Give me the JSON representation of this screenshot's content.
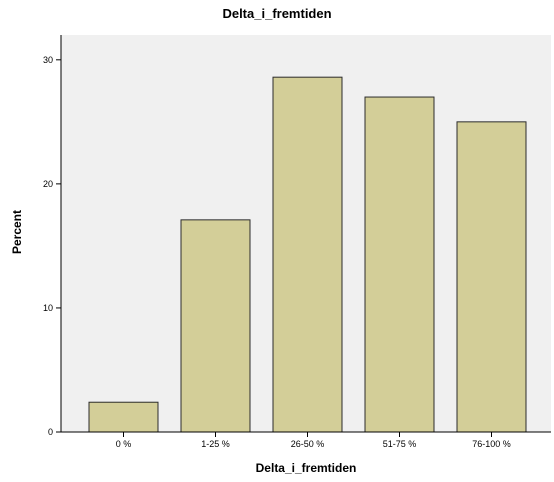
{
  "chart_data": {
    "type": "bar",
    "title": "Delta_i_fremtiden",
    "xlabel": "Delta_i_fremtiden",
    "ylabel": "Percent",
    "categories": [
      "0 %",
      "1-25 %",
      "26-50 %",
      "51-75 %",
      "76-100 %"
    ],
    "values": [
      2.4,
      17.1,
      28.6,
      27.0,
      25.0
    ],
    "ylim": [
      0,
      32
    ],
    "yticks": [
      0,
      10,
      20,
      30
    ],
    "grid": false,
    "legend": "none",
    "colors": {
      "bar_fill": "#d3ce98",
      "bar_stroke": "#2b2b2b",
      "plot_background": "#f0f0f0",
      "axis": "#000000"
    }
  }
}
